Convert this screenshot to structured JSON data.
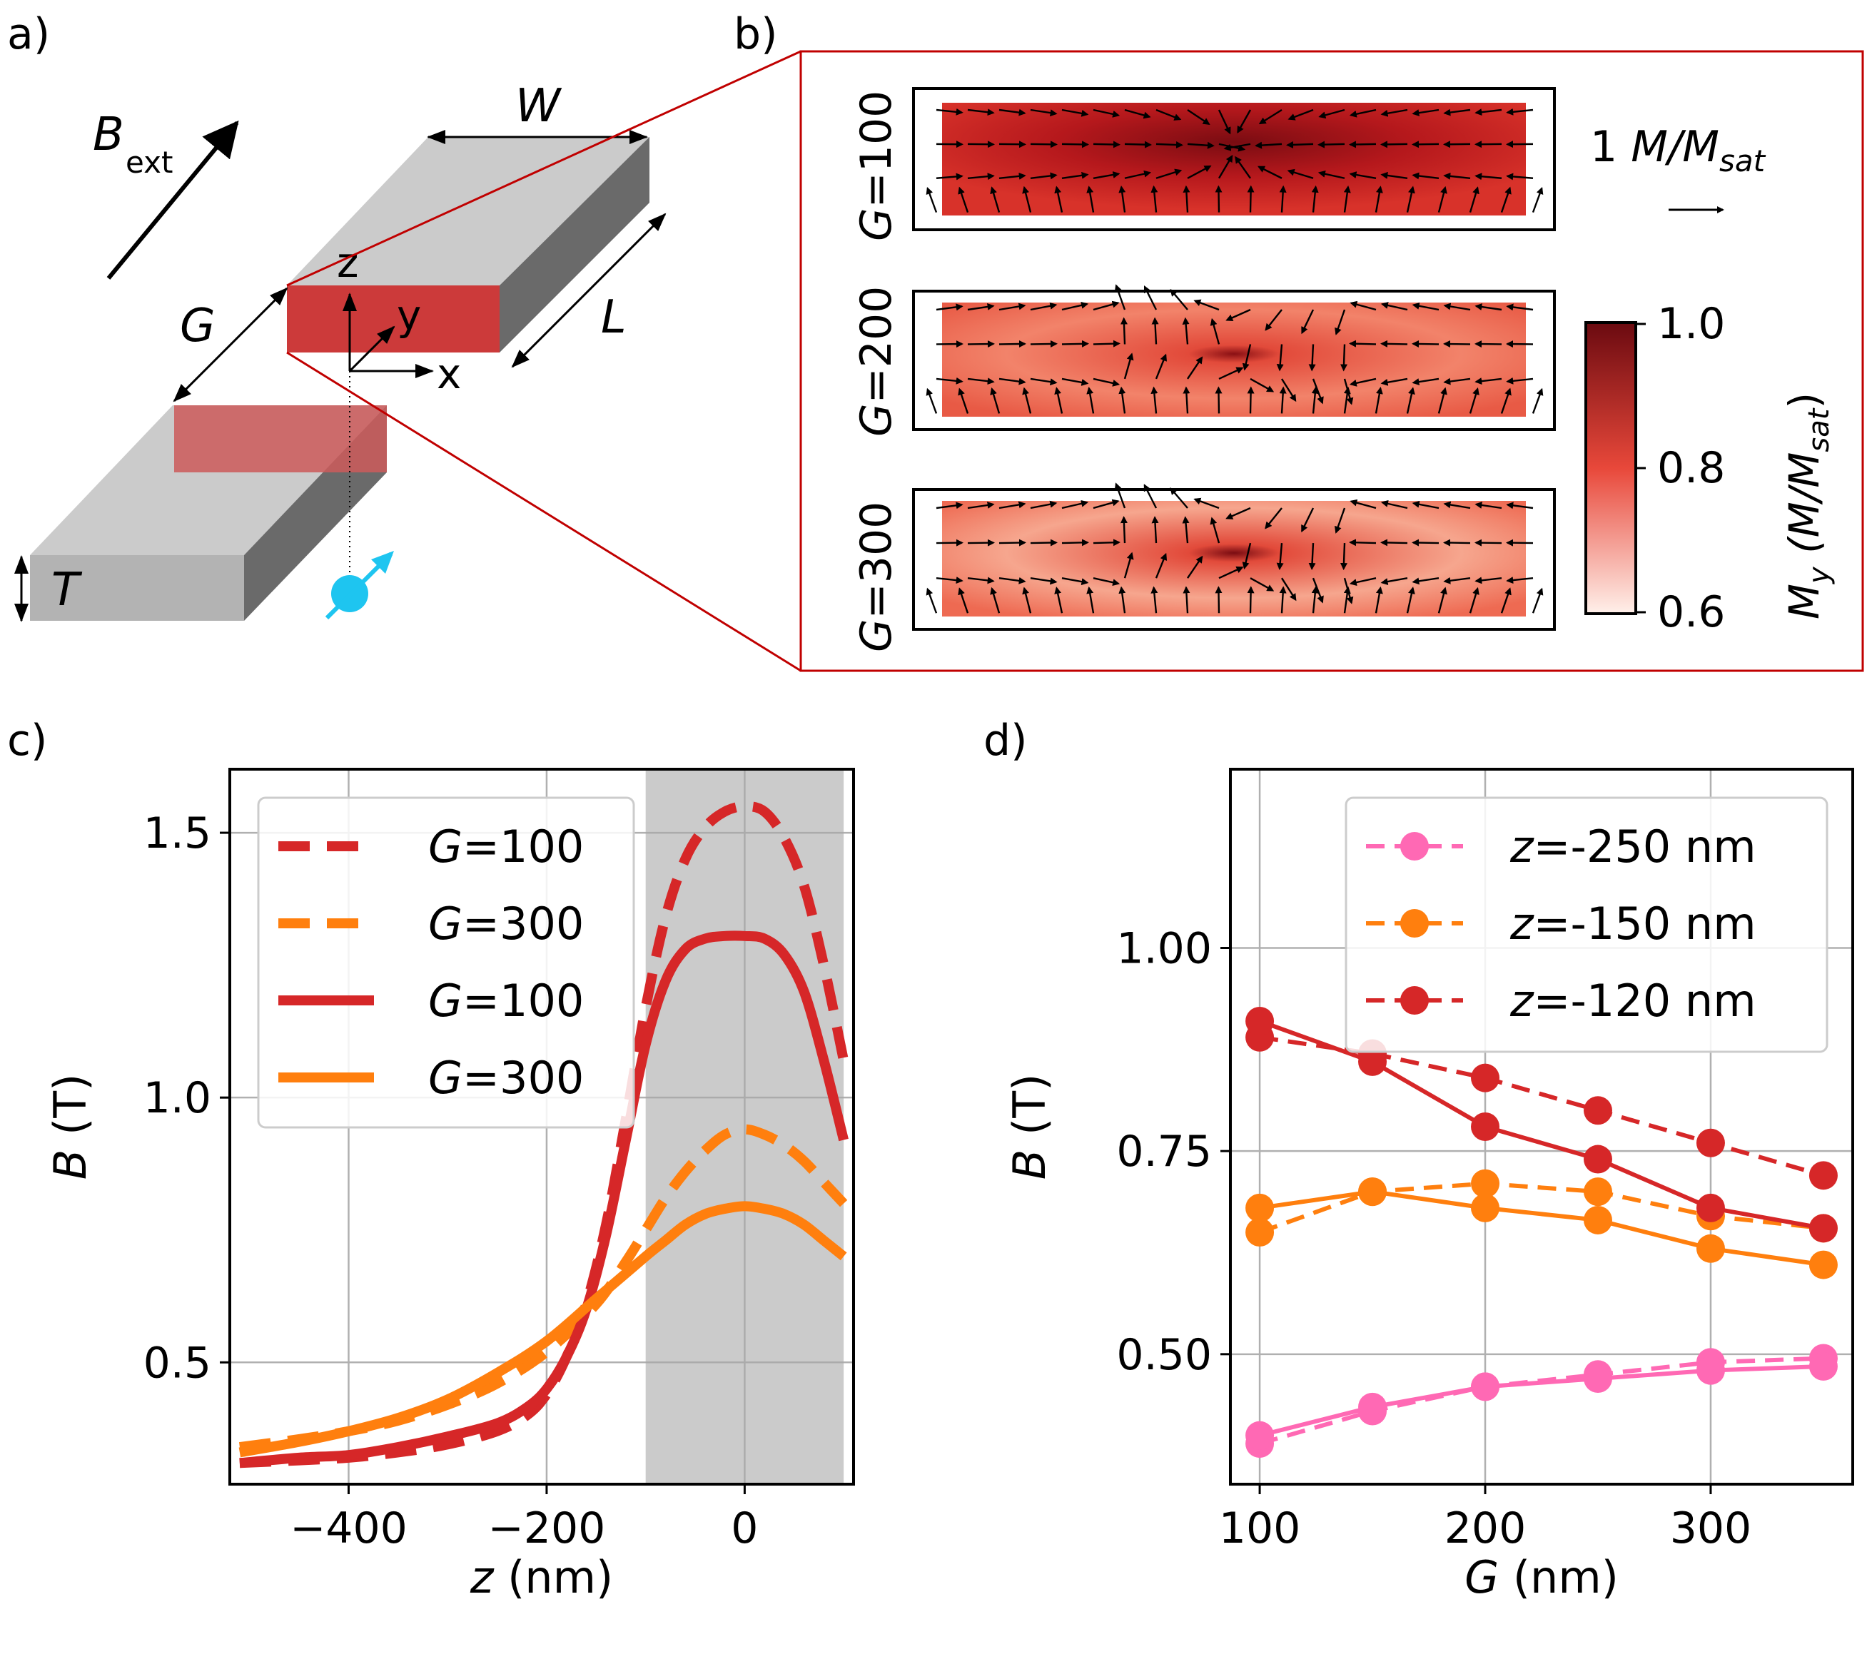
{
  "panel_labels": {
    "a": "a)",
    "b": "b)",
    "c": "c)",
    "d": "d)"
  },
  "schematic": {
    "bext_main": "B",
    "bext_sub": "ext",
    "label_w": "W",
    "label_l": "L",
    "label_g": "G",
    "label_t": "T",
    "axis_z": "z",
    "axis_y": "y",
    "axis_x": "x"
  },
  "maps": {
    "rows": [
      {
        "label_var": "G",
        "label_val": "=100"
      },
      {
        "label_var": "G",
        "label_val": "=200"
      },
      {
        "label_var": "G",
        "label_val": "=300"
      }
    ],
    "scale_num": "1",
    "scale_var": "M/M",
    "scale_sub": "sat",
    "colorbar": {
      "ticks": [
        "1.0",
        "0.8",
        "0.6"
      ],
      "label_main": "M",
      "label_sub": "y",
      "label_paren_open": "(M/M",
      "label_paren_sub": "sat",
      "label_paren_close": ")",
      "color_low": "#fff0ea",
      "color_mid": "#e8483a",
      "color_high": "#6b0a10"
    }
  },
  "chart_data": [
    {
      "type": "line",
      "title": "",
      "xlabel_var": "z",
      "xlabel_unit": " (nm)",
      "ylabel_var": "B",
      "ylabel_unit": " (T)",
      "xlim": [
        -520,
        110
      ],
      "ylim": [
        0.27,
        1.62
      ],
      "xticks": [
        -400,
        -200,
        0
      ],
      "xtick_labels": [
        "−400",
        "−200",
        "0"
      ],
      "yticks": [
        0.5,
        1.0,
        1.5
      ],
      "ytick_labels": [
        "0.5",
        "1.0",
        "1.5"
      ],
      "shaded_region": [
        -100,
        100
      ],
      "grid": true,
      "legend_position": "top-left",
      "series": [
        {
          "name_var": "G",
          "name_val": "=100",
          "style": "dashed",
          "color": "#d62728",
          "x": [
            -510,
            -450,
            -400,
            -350,
            -300,
            -250,
            -220,
            -200,
            -180,
            -160,
            -140,
            -120,
            -100,
            -80,
            -60,
            -40,
            -20,
            0,
            20,
            40,
            60,
            80,
            100
          ],
          "y": [
            0.31,
            0.315,
            0.32,
            0.33,
            0.345,
            0.37,
            0.4,
            0.44,
            0.51,
            0.61,
            0.76,
            0.96,
            1.17,
            1.34,
            1.45,
            1.51,
            1.54,
            1.55,
            1.54,
            1.49,
            1.4,
            1.25,
            1.07
          ]
        },
        {
          "name_var": "G",
          "name_val": "=300",
          "style": "dashed",
          "color": "#ff7f0e",
          "x": [
            -510,
            -450,
            -400,
            -350,
            -300,
            -250,
            -200,
            -150,
            -120,
            -100,
            -80,
            -60,
            -40,
            -20,
            0,
            20,
            40,
            60,
            80,
            100
          ],
          "y": [
            0.34,
            0.355,
            0.37,
            0.39,
            0.42,
            0.46,
            0.52,
            0.61,
            0.69,
            0.75,
            0.81,
            0.86,
            0.9,
            0.93,
            0.94,
            0.93,
            0.91,
            0.88,
            0.84,
            0.8
          ]
        },
        {
          "name_var": "G",
          "name_val": "=100",
          "style": "solid",
          "color": "#d62728",
          "x": [
            -510,
            -450,
            -400,
            -350,
            -300,
            -250,
            -220,
            -200,
            -180,
            -160,
            -140,
            -120,
            -100,
            -80,
            -60,
            -40,
            -20,
            0,
            20,
            40,
            60,
            80,
            100
          ],
          "y": [
            0.31,
            0.32,
            0.325,
            0.34,
            0.36,
            0.385,
            0.415,
            0.45,
            0.51,
            0.6,
            0.74,
            0.92,
            1.1,
            1.22,
            1.28,
            1.3,
            1.305,
            1.305,
            1.3,
            1.27,
            1.2,
            1.07,
            0.92
          ]
        },
        {
          "name_var": "G",
          "name_val": "=300",
          "style": "solid",
          "color": "#ff7f0e",
          "x": [
            -510,
            -450,
            -400,
            -350,
            -300,
            -250,
            -200,
            -150,
            -100,
            -80,
            -60,
            -40,
            -20,
            0,
            20,
            40,
            60,
            80,
            100
          ],
          "y": [
            0.33,
            0.35,
            0.37,
            0.395,
            0.43,
            0.48,
            0.54,
            0.62,
            0.7,
            0.73,
            0.76,
            0.78,
            0.79,
            0.795,
            0.79,
            0.78,
            0.76,
            0.73,
            0.7
          ]
        }
      ]
    },
    {
      "type": "line",
      "title": "",
      "xlabel_var": "G",
      "xlabel_unit": " (nm)",
      "ylabel_var": "B",
      "ylabel_unit": " (T)",
      "xlim": [
        87,
        363
      ],
      "ylim": [
        0.34,
        1.22
      ],
      "xticks": [
        100,
        200,
        300
      ],
      "xtick_labels": [
        "100",
        "200",
        "300"
      ],
      "yticks": [
        0.5,
        0.75,
        1.0
      ],
      "ytick_labels": [
        "0.50",
        "0.75",
        "1.00"
      ],
      "grid": true,
      "legend_position": "top-right",
      "categories": [
        100,
        150,
        200,
        250,
        300,
        350
      ],
      "series": [
        {
          "name_var": "z",
          "name_val": "=-250 nm",
          "style": "dashed",
          "color": "#ff69b4",
          "values": [
            0.39,
            0.43,
            0.46,
            0.475,
            0.49,
            0.495
          ]
        },
        {
          "name_var": "z",
          "name_val": "=-250 nm",
          "style": "solid",
          "color": "#ff69b4",
          "values": [
            0.4,
            0.435,
            0.46,
            0.47,
            0.48,
            0.485
          ],
          "in_legend": false
        },
        {
          "name_var": "z",
          "name_val": "=-150 nm",
          "style": "dashed",
          "color": "#ff7f0e",
          "values": [
            0.65,
            0.7,
            0.71,
            0.7,
            0.67,
            0.655
          ]
        },
        {
          "name_var": "z",
          "name_val": "=-150 nm",
          "style": "solid",
          "color": "#ff7f0e",
          "values": [
            0.68,
            0.7,
            0.68,
            0.665,
            0.63,
            0.61
          ],
          "in_legend": false
        },
        {
          "name_var": "z",
          "name_val": "=-120 nm",
          "style": "dashed",
          "color": "#d62728",
          "values": [
            0.89,
            0.87,
            0.84,
            0.8,
            0.76,
            0.72
          ]
        },
        {
          "name_var": "z",
          "name_val": "=-120 nm",
          "style": "solid",
          "color": "#d62728",
          "values": [
            0.91,
            0.86,
            0.78,
            0.74,
            0.68,
            0.655
          ],
          "in_legend": false
        }
      ]
    }
  ]
}
